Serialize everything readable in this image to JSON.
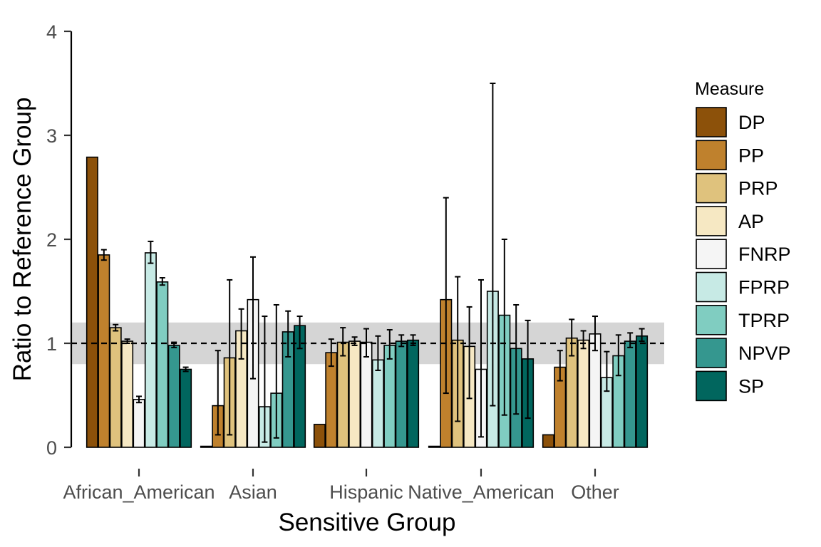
{
  "chart_data": {
    "type": "bar",
    "xlabel": "Sensitive Group",
    "ylabel": "Ratio to Reference Group",
    "ylim": [
      0,
      4
    ],
    "yticks": [
      0,
      1,
      2,
      3,
      4
    ],
    "reference_line": 1,
    "reference_band": [
      0.8,
      1.2
    ],
    "grid": false,
    "legend_title": "Measure",
    "legend_position": "right",
    "categories": [
      "African_American",
      "Asian",
      "Hispanic",
      "Native_American",
      "Other"
    ],
    "series": [
      {
        "name": "DP",
        "color": "#8c510a",
        "values": [
          2.79,
          0.01,
          0.22,
          0.01,
          0.12
        ],
        "err_low": [
          null,
          null,
          null,
          null,
          null
        ],
        "err_high": [
          null,
          null,
          null,
          null,
          null
        ]
      },
      {
        "name": "PP",
        "color": "#bf812d",
        "values": [
          1.85,
          0.4,
          0.91,
          1.42,
          0.77
        ],
        "err_low": [
          1.8,
          0.12,
          0.78,
          0.52,
          0.64
        ],
        "err_high": [
          1.9,
          0.93,
          1.04,
          2.4,
          0.93
        ]
      },
      {
        "name": "PRP",
        "color": "#dfc27d",
        "values": [
          1.15,
          0.86,
          1.01,
          1.03,
          1.05
        ],
        "err_low": [
          1.12,
          0.12,
          0.88,
          0.25,
          0.88
        ],
        "err_high": [
          1.18,
          1.61,
          1.15,
          1.64,
          1.23
        ]
      },
      {
        "name": "AP",
        "color": "#f6e8c3",
        "values": [
          1.02,
          1.12,
          1.02,
          0.97,
          1.03
        ],
        "err_low": [
          1.0,
          0.85,
          0.98,
          0.47,
          0.95
        ],
        "err_high": [
          1.04,
          1.33,
          1.06,
          1.35,
          1.12
        ]
      },
      {
        "name": "FNRP",
        "color": "#f5f5f5",
        "values": [
          0.46,
          1.42,
          1.01,
          0.75,
          1.09
        ],
        "err_low": [
          0.43,
          0.66,
          0.87,
          0.1,
          0.93
        ],
        "err_high": [
          0.49,
          1.83,
          1.14,
          1.61,
          1.26
        ]
      },
      {
        "name": "FPRP",
        "color": "#c7eae5",
        "values": [
          1.87,
          0.39,
          0.84,
          1.5,
          0.67
        ],
        "err_low": [
          1.77,
          0.05,
          0.74,
          0.4,
          0.54
        ],
        "err_high": [
          1.98,
          1.26,
          1.07,
          3.5,
          0.92
        ]
      },
      {
        "name": "TPRP",
        "color": "#80cdc1",
        "values": [
          1.59,
          0.52,
          0.98,
          1.27,
          0.88
        ],
        "err_low": [
          1.56,
          0.09,
          0.85,
          0.31,
          0.69
        ],
        "err_high": [
          1.63,
          1.37,
          1.13,
          2.0,
          1.08
        ]
      },
      {
        "name": "NPVP",
        "color": "#35978f",
        "values": [
          0.98,
          1.11,
          1.02,
          0.95,
          1.02
        ],
        "err_low": [
          0.96,
          0.87,
          0.97,
          0.32,
          0.96
        ],
        "err_high": [
          1.01,
          1.31,
          1.08,
          1.37,
          1.1
        ]
      },
      {
        "name": "SP",
        "color": "#01665e",
        "values": [
          0.75,
          1.17,
          1.03,
          0.85,
          1.07
        ],
        "err_low": [
          0.73,
          0.95,
          0.98,
          0.28,
          1.02
        ],
        "err_high": [
          0.77,
          1.26,
          1.08,
          1.22,
          1.14
        ]
      }
    ]
  }
}
